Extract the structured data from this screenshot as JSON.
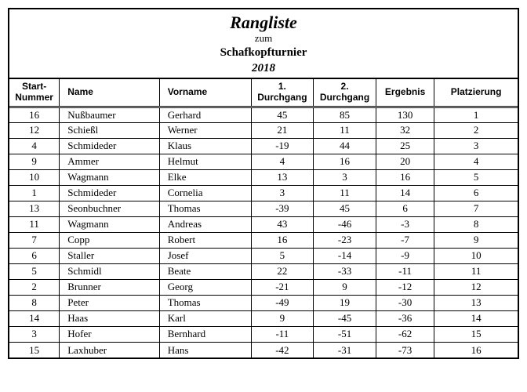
{
  "header": {
    "title": "Rangliste",
    "subtitle": "zum",
    "event": "Schafkopfturnier",
    "year": "2018"
  },
  "columns": {
    "start_nummer": "Start-\nNummer",
    "name": "Name",
    "vorname": "Vorname",
    "durchgang1": "1.\nDurchgang",
    "durchgang2": "2.\nDurchgang",
    "ergebnis": "Ergebnis",
    "platzierung": "Platzierung"
  },
  "rows": [
    {
      "nr": "16",
      "name": "Nußbaumer",
      "vor": "Gerhard",
      "d1": "45",
      "d2": "85",
      "res": "130",
      "plz": "1"
    },
    {
      "nr": "12",
      "name": "Schießl",
      "vor": "Werner",
      "d1": "21",
      "d2": "11",
      "res": "32",
      "plz": "2"
    },
    {
      "nr": "4",
      "name": "Schmideder",
      "vor": "Klaus",
      "d1": "-19",
      "d2": "44",
      "res": "25",
      "plz": "3"
    },
    {
      "nr": "9",
      "name": "Ammer",
      "vor": "Helmut",
      "d1": "4",
      "d2": "16",
      "res": "20",
      "plz": "4"
    },
    {
      "nr": "10",
      "name": "Wagmann",
      "vor": "Elke",
      "d1": "13",
      "d2": "3",
      "res": "16",
      "plz": "5"
    },
    {
      "nr": "1",
      "name": "Schmideder",
      "vor": "Cornelia",
      "d1": "3",
      "d2": "11",
      "res": "14",
      "plz": "6"
    },
    {
      "nr": "13",
      "name": "Seonbuchner",
      "vor": "Thomas",
      "d1": "-39",
      "d2": "45",
      "res": "6",
      "plz": "7"
    },
    {
      "nr": "11",
      "name": "Wagmann",
      "vor": "Andreas",
      "d1": "43",
      "d2": "-46",
      "res": "-3",
      "plz": "8"
    },
    {
      "nr": "7",
      "name": "Copp",
      "vor": "Robert",
      "d1": "16",
      "d2": "-23",
      "res": "-7",
      "plz": "9"
    },
    {
      "nr": "6",
      "name": "Staller",
      "vor": "Josef",
      "d1": "5",
      "d2": "-14",
      "res": "-9",
      "plz": "10"
    },
    {
      "nr": "5",
      "name": "Schmidl",
      "vor": "Beate",
      "d1": "22",
      "d2": "-33",
      "res": "-11",
      "plz": "11"
    },
    {
      "nr": "2",
      "name": "Brunner",
      "vor": "Georg",
      "d1": "-21",
      "d2": "9",
      "res": "-12",
      "plz": "12"
    },
    {
      "nr": "8",
      "name": "Peter",
      "vor": "Thomas",
      "d1": "-49",
      "d2": "19",
      "res": "-30",
      "plz": "13"
    },
    {
      "nr": "14",
      "name": "Haas",
      "vor": "Karl",
      "d1": "9",
      "d2": "-45",
      "res": "-36",
      "plz": "14"
    },
    {
      "nr": "3",
      "name": "Hofer",
      "vor": "Bernhard",
      "d1": "-11",
      "d2": "-51",
      "res": "-62",
      "plz": "15"
    },
    {
      "nr": "15",
      "name": "Laxhuber",
      "vor": "Hans",
      "d1": "-42",
      "d2": "-31",
      "res": "-73",
      "plz": "16"
    }
  ]
}
